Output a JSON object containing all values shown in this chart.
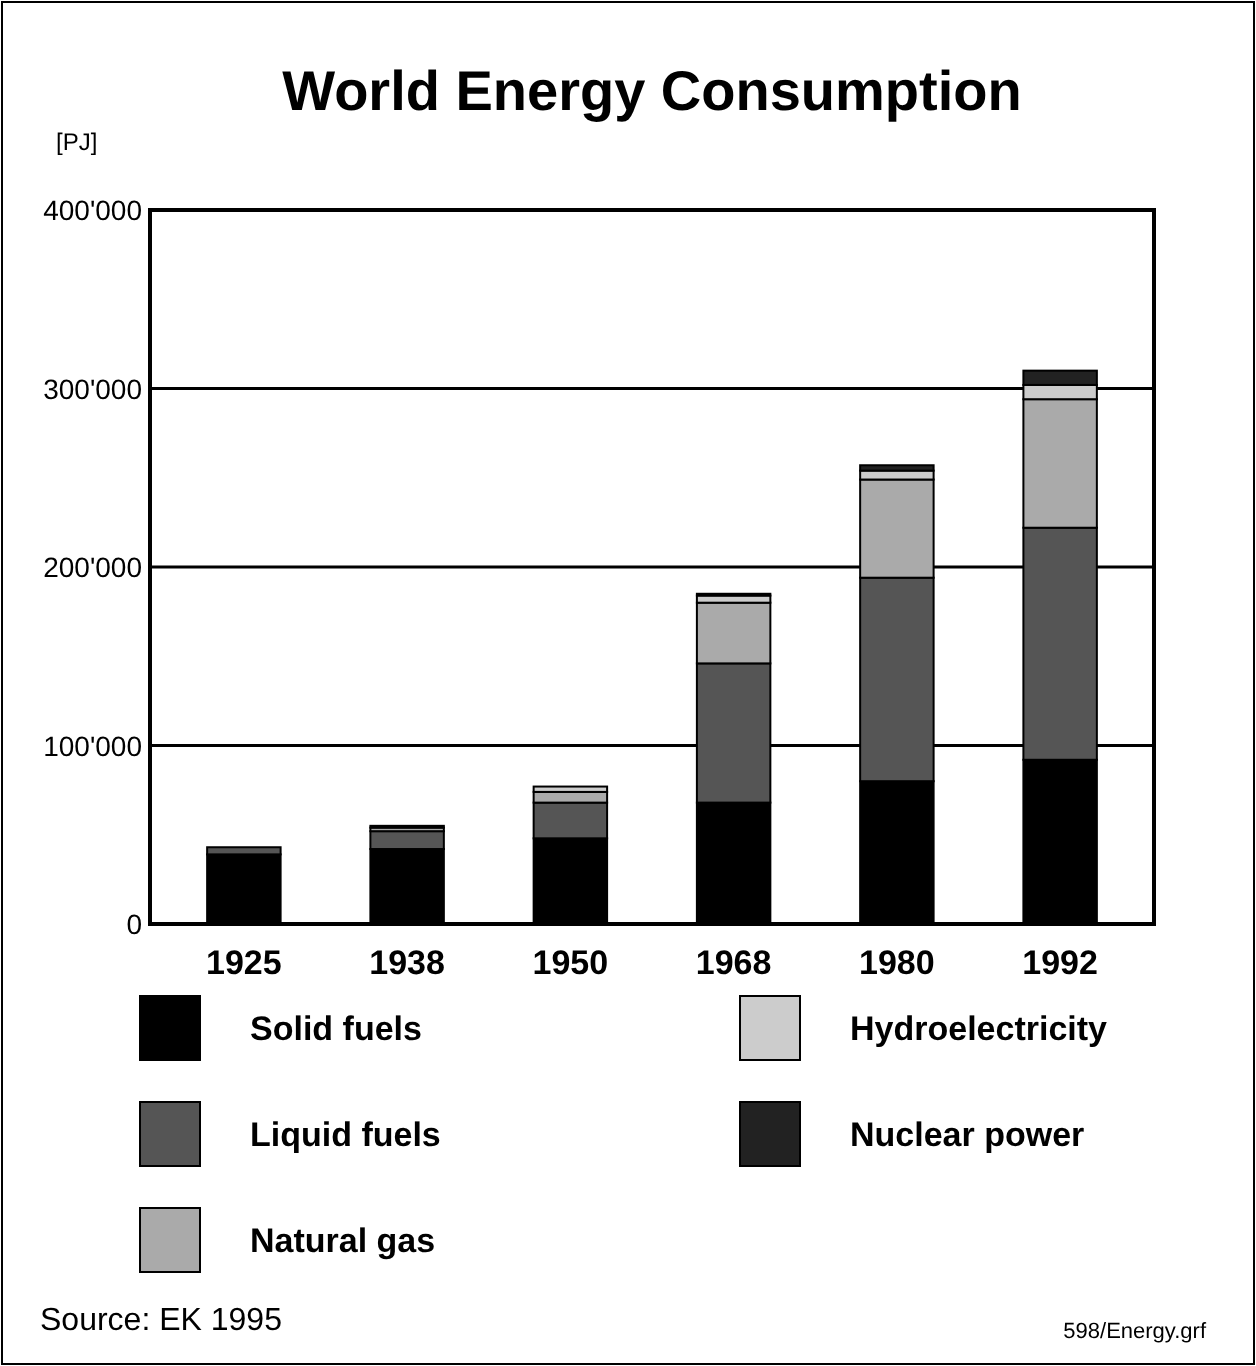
{
  "chart_data": {
    "type": "bar",
    "title": "World Energy Consumption",
    "ylabel": "[PJ]",
    "stacked": true,
    "categories": [
      "1925",
      "1938",
      "1950",
      "1968",
      "1980",
      "1992"
    ],
    "series": [
      {
        "name": "Solid fuels",
        "color": "#000000",
        "values": [
          39000,
          42000,
          48000,
          68000,
          80000,
          92000
        ]
      },
      {
        "name": "Liquid fuels",
        "color": "#555555",
        "values": [
          4000,
          10000,
          20000,
          78000,
          114000,
          130000
        ]
      },
      {
        "name": "Natural gas",
        "color": "#aaaaaa",
        "values": [
          0,
          2000,
          6000,
          34000,
          55000,
          72000
        ]
      },
      {
        "name": "Hydroelectricity",
        "color": "#cccccc",
        "values": [
          0,
          1000,
          3000,
          4000,
          5000,
          8000
        ]
      },
      {
        "name": "Nuclear power",
        "color": "#222222",
        "values": [
          0,
          0,
          0,
          1000,
          3000,
          8000
        ]
      }
    ],
    "ylim": [
      0,
      400000
    ],
    "yticks": [
      0,
      {
        "value": 100000,
        "label": "100'000"
      },
      {
        "value": 200000,
        "label": "200'000"
      },
      {
        "value": 300000,
        "label": "300'000"
      },
      {
        "value": 400000,
        "label": "400'000"
      }
    ],
    "grid": "y",
    "legend": "bottom",
    "annotations": [
      "Source: EK 1995",
      "598/Energy.grf"
    ]
  }
}
